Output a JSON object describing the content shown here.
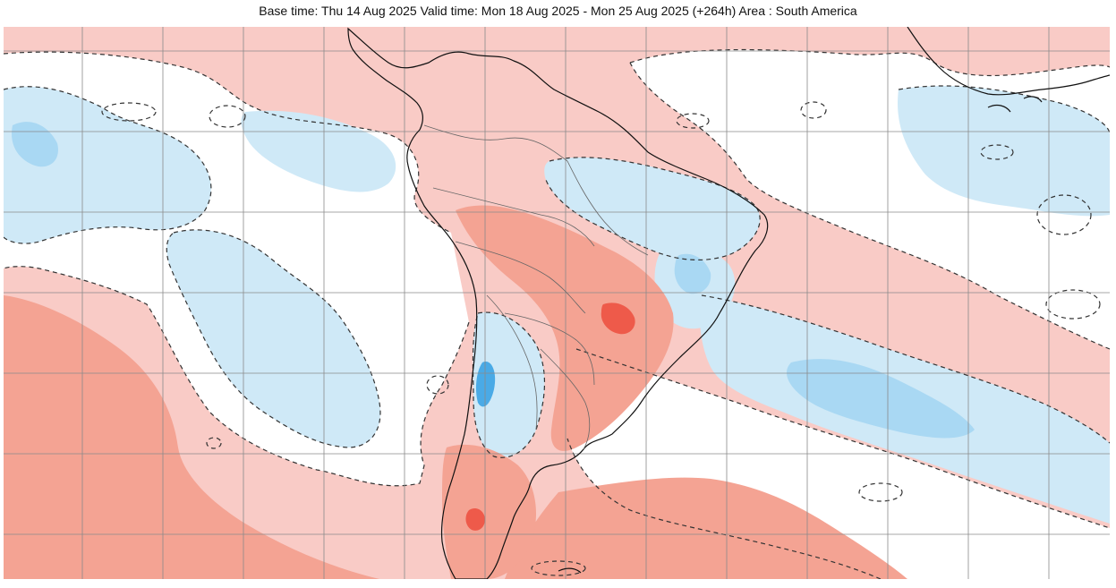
{
  "header": {
    "title": "Base time: Thu 14 Aug 2025 Valid time: Mon 18 Aug 2025 - Mon 25 Aug 2025 (+264h) Area : South America"
  },
  "map": {
    "area": "South America",
    "palette": {
      "background_neutral": "#ffffff",
      "warm_light": "#f9cbc6",
      "warm_medium": "#f4a393",
      "warm_strong": "#ee5a4a",
      "cool_light": "#cfe9f7",
      "cool_medium": "#a9d8f3",
      "cool_strong": "#4aaae6",
      "grid_line": "#8a8a8a",
      "contour_dashed": "#333333",
      "coastline": "#111111",
      "borders": "#666666"
    },
    "graticule": {
      "visible": true
    },
    "contours": {
      "style": "dashed"
    }
  }
}
